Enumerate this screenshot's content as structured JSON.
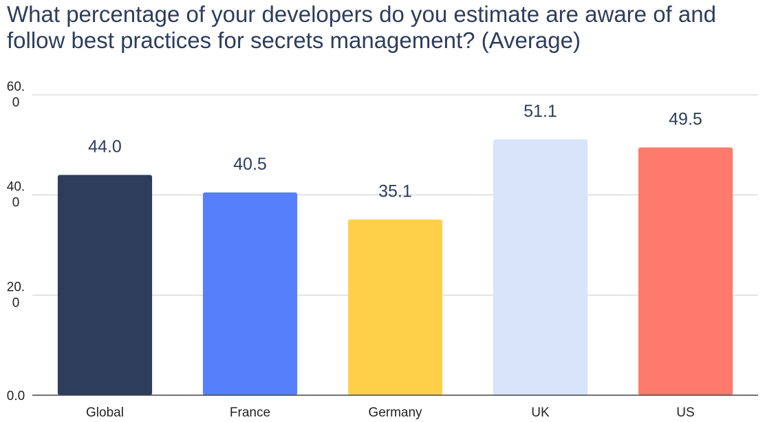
{
  "chart_data": {
    "type": "bar",
    "title": "What percentage of your developers do you estimate are aware of and follow best practices for secrets management? (Average)",
    "xlabel": "",
    "ylabel": "",
    "categories": [
      "Global",
      "France",
      "Germany",
      "UK",
      "US"
    ],
    "values": [
      44.0,
      40.5,
      35.1,
      51.1,
      49.5
    ],
    "value_labels": [
      "44.0",
      "40.5",
      "35.1",
      "51.1",
      "49.5"
    ],
    "bar_colors": [
      "#2e3d5c",
      "#5680fb",
      "#fed04a",
      "#d7e4fa",
      "#fd7a6d"
    ],
    "ylim": [
      0,
      60
    ],
    "y_ticks": [
      {
        "value": 0,
        "lines": [
          "0.0"
        ]
      },
      {
        "value": 20,
        "lines": [
          "20.",
          "0"
        ]
      },
      {
        "value": 40,
        "lines": [
          "40.",
          "0"
        ]
      },
      {
        "value": 60,
        "lines": [
          "60.",
          "0"
        ]
      }
    ],
    "grid": true,
    "legend": "none"
  }
}
